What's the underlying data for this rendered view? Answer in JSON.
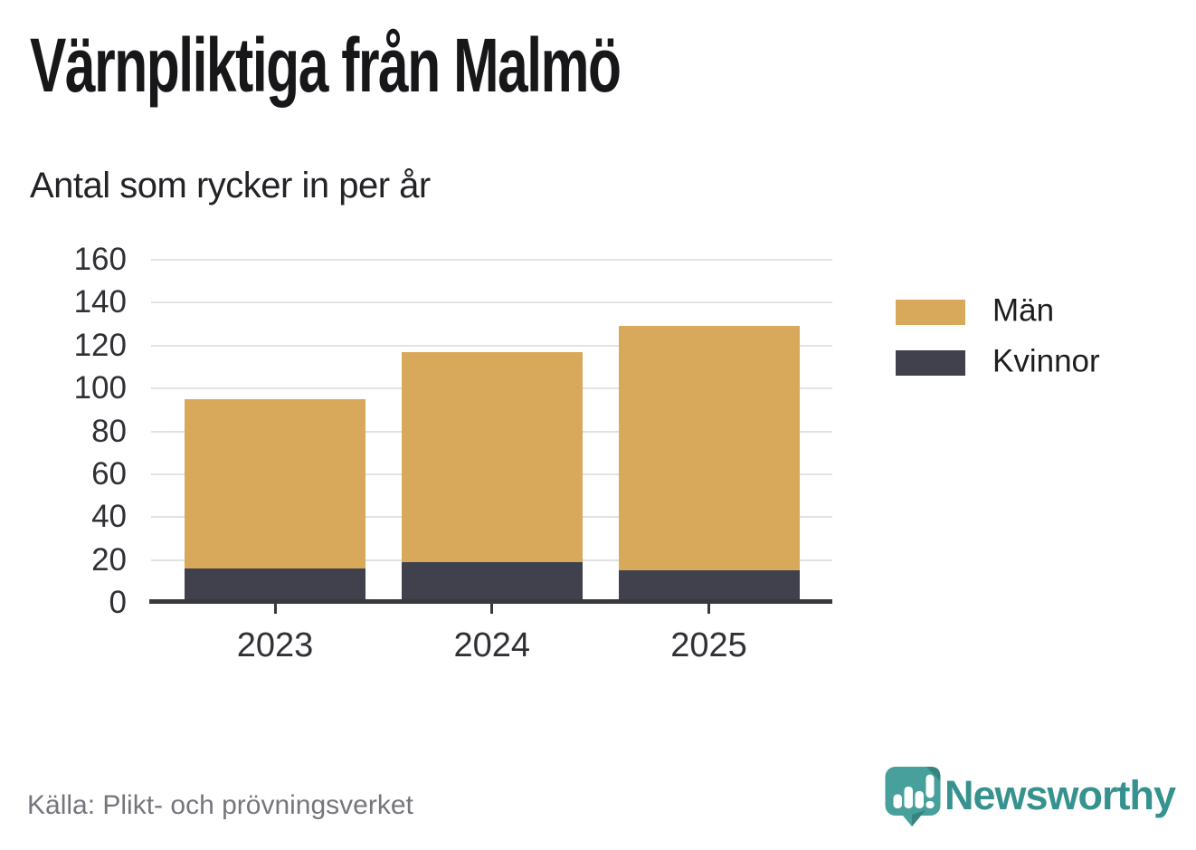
{
  "header": {
    "title": "Värnpliktiga från Malmö",
    "subtitle": "Antal som rycker in per år"
  },
  "footer": {
    "source": "Källa: Plikt- och prövningsverket",
    "brand": "Newsworthy"
  },
  "legend": {
    "items": [
      {
        "label": "Män",
        "color": "#d8a95a"
      },
      {
        "label": "Kvinnor",
        "color": "#41414e"
      }
    ]
  },
  "chart_data": {
    "type": "bar",
    "stacked": true,
    "title": "Värnpliktiga från Malmö",
    "subtitle": "Antal som rycker in per år",
    "categories": [
      "2023",
      "2024",
      "2025"
    ],
    "series": [
      {
        "name": "Kvinnor",
        "color": "#41414e",
        "values": [
          16,
          19,
          15
        ]
      },
      {
        "name": "Män",
        "color": "#d8a95a",
        "values": [
          79,
          98,
          114
        ]
      }
    ],
    "stack_totals": [
      95,
      117,
      129
    ],
    "ylim": [
      0,
      160
    ],
    "yticks": [
      0,
      20,
      40,
      60,
      80,
      100,
      120,
      140,
      160
    ],
    "xlabel": "",
    "ylabel": "",
    "grid": true,
    "legend_position": "right-top"
  },
  "colors": {
    "grid": "#e2e2e2",
    "axis": "#38383f",
    "tick_label": "#303036",
    "source_text": "#75757d",
    "brand": "#36928e",
    "background": "#ffffff"
  }
}
